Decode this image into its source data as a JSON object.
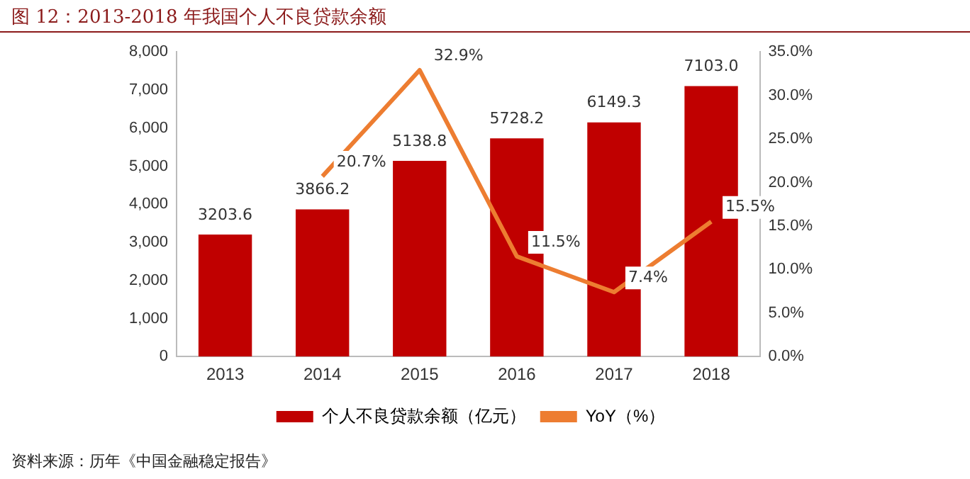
{
  "chart_data": {
    "type": "bar",
    "title": "图 12：2013-2018 年我国个人不良贷款余额",
    "categories": [
      "2013",
      "2014",
      "2015",
      "2016",
      "2017",
      "2018"
    ],
    "series": [
      {
        "name": "个人不良贷款余额（亿元）",
        "color": "#c00000",
        "values": [
          3203.6,
          3866.2,
          5138.8,
          5728.2,
          6149.3,
          7103.0
        ],
        "value_labels": [
          "3203.6",
          "3866.2",
          "5138.8",
          "5728.2",
          "6149.3",
          "7103.0"
        ]
      },
      {
        "name": "YoY（%）",
        "type": "line",
        "axis": "y2",
        "color": "#ed7d31",
        "values": [
          null,
          20.7,
          32.9,
          11.5,
          7.4,
          15.5
        ],
        "value_labels": [
          null,
          "20.7%",
          "32.9%",
          "11.5%",
          "7.4%",
          "15.5%"
        ]
      }
    ],
    "ylim": [
      0,
      8000
    ],
    "yticks": [
      0,
      {
        "value": 1000,
        "label": "1,000"
      },
      {
        "value": 2000,
        "label": "2,000"
      },
      {
        "value": 3000,
        "label": "3,000"
      },
      {
        "value": 4000,
        "label": "4,000"
      },
      {
        "value": 5000,
        "label": "5,000"
      },
      {
        "value": 6000,
        "label": "6,000"
      },
      {
        "value": 7000,
        "label": "7,000"
      },
      {
        "value": 8000,
        "label": "8,000"
      }
    ],
    "y2lim": [
      0,
      35
    ],
    "y2ticks": [
      {
        "value": 0,
        "label": "0.0%"
      },
      {
        "value": 5,
        "label": "5.0%"
      },
      {
        "value": 10,
        "label": "10.0%"
      },
      {
        "value": 15,
        "label": "15.0%"
      },
      {
        "value": 20,
        "label": "20.0%"
      },
      {
        "value": 25,
        "label": "25.0%"
      },
      {
        "value": 30,
        "label": "30.0%"
      },
      {
        "value": 35,
        "label": "35.0%"
      }
    ],
    "grid": false,
    "legend": "bottom",
    "marker": "none",
    "line_style": "solid",
    "annotations": [
      "资料来源：历年《中国金融稳定报告》"
    ]
  }
}
